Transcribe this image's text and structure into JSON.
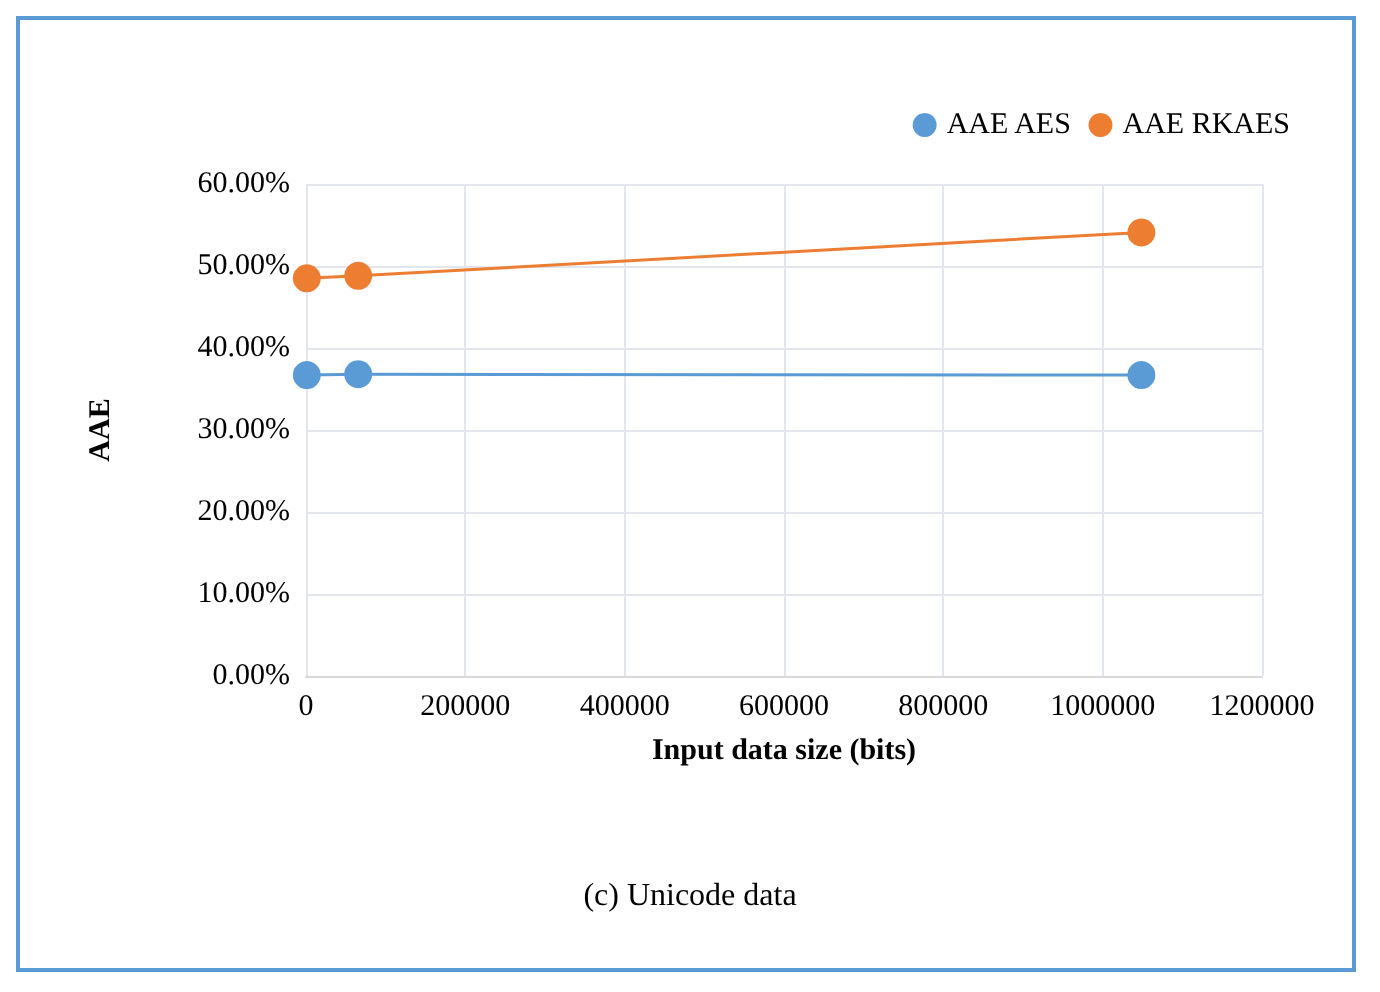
{
  "chart_data": {
    "type": "line",
    "xlabel": "Input data size (bits)",
    "ylabel": "AAE",
    "annotations": [
      "(c) Unicode data"
    ],
    "x": [
      1024,
      65536,
      1048576
    ],
    "series": [
      {
        "name": "AAE AES",
        "color": "#5b9bd5",
        "values": [
          36.7,
          36.8,
          36.7
        ]
      },
      {
        "name": "AAE RKAES",
        "color": "#ed7d31",
        "values": [
          48.5,
          48.8,
          54.1
        ]
      }
    ],
    "xlim": [
      0,
      1200000
    ],
    "xticks": [
      0,
      200000,
      400000,
      600000,
      800000,
      1000000,
      1200000
    ],
    "ylim": [
      0,
      60
    ],
    "yticks": [
      {
        "value": 0,
        "label": "0.00%"
      },
      {
        "value": 10,
        "label": "10.00%"
      },
      {
        "value": 20,
        "label": "20.00%"
      },
      {
        "value": 30,
        "label": "30.00%"
      },
      {
        "value": 40,
        "label": "40.00%"
      },
      {
        "value": 50,
        "label": "50.00%"
      },
      {
        "value": 60,
        "label": "60.00%"
      }
    ],
    "grid": true,
    "legend": "top right",
    "marker": "circle",
    "line_style": "solid"
  }
}
